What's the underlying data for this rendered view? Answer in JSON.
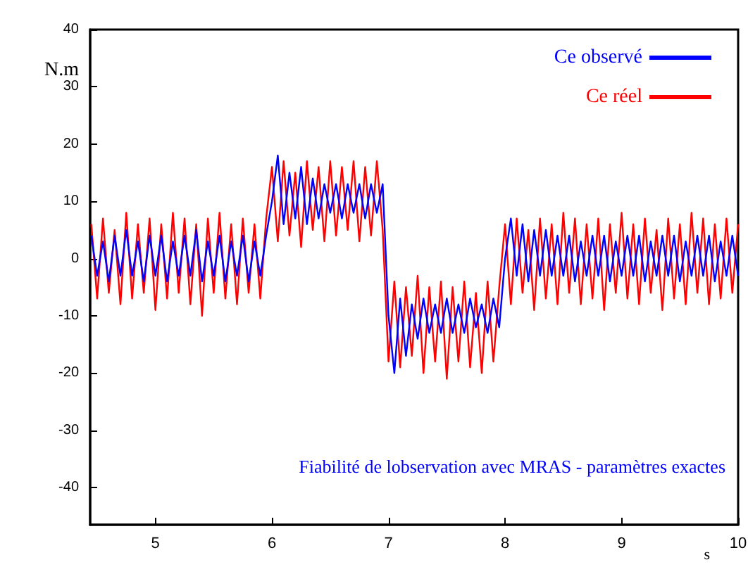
{
  "chart_data": {
    "type": "line",
    "xlabel": "s",
    "ylabel": "N.m",
    "annotations": [
      "Fiabilité de lobservation avec MRAS - paramètres exactes"
    ],
    "x": [
      4.45,
      4.5,
      4.55,
      4.6,
      4.65,
      4.7,
      4.75,
      4.8,
      4.85,
      4.9,
      4.95,
      5,
      5.05,
      5.1,
      5.15,
      5.2,
      5.25,
      5.3,
      5.35,
      5.4,
      5.45,
      5.5,
      5.55,
      5.6,
      5.65,
      5.7,
      5.75,
      5.8,
      5.85,
      5.9,
      5.95,
      6,
      6.05,
      6.1,
      6.15,
      6.2,
      6.25,
      6.3,
      6.35,
      6.4,
      6.45,
      6.5,
      6.55,
      6.6,
      6.65,
      6.7,
      6.75,
      6.8,
      6.85,
      6.9,
      6.95,
      7,
      7.05,
      7.1,
      7.15,
      7.2,
      7.25,
      7.3,
      7.35,
      7.4,
      7.45,
      7.5,
      7.55,
      7.6,
      7.65,
      7.7,
      7.75,
      7.8,
      7.85,
      7.9,
      7.95,
      8,
      8.05,
      8.1,
      8.15,
      8.2,
      8.25,
      8.3,
      8.35,
      8.4,
      8.45,
      8.5,
      8.55,
      8.6,
      8.65,
      8.7,
      8.75,
      8.8,
      8.85,
      8.9,
      8.95,
      9,
      9.05,
      9.1,
      9.15,
      9.2,
      9.25,
      9.3,
      9.35,
      9.4,
      9.45,
      9.5,
      9.55,
      9.6,
      9.65,
      9.7,
      9.75,
      9.8,
      9.85,
      9.9,
      9.95,
      10
    ],
    "series": [
      {
        "name": "Ce réel",
        "color": "#ff0000",
        "values": [
          6,
          -7,
          7,
          -6,
          5,
          -8,
          8,
          -7,
          6,
          -6,
          7,
          -9,
          6,
          -7,
          8,
          -6,
          7,
          -8,
          6,
          -10,
          7,
          -6,
          8,
          -7,
          6,
          -8,
          7,
          -6,
          6,
          -7,
          7,
          16,
          3,
          17,
          4,
          15,
          2,
          17,
          5,
          16,
          3,
          17,
          4,
          16,
          5,
          17,
          3,
          16,
          4,
          17,
          5,
          -18,
          -4,
          -19,
          -5,
          -17,
          -3,
          -20,
          -5,
          -18,
          -4,
          -21,
          -5,
          -18,
          -4,
          -19,
          -6,
          -20,
          -4,
          -18,
          -5,
          6,
          -8,
          7,
          -6,
          5,
          -9,
          7,
          -7,
          6,
          -8,
          8,
          -6,
          7,
          -8,
          6,
          -7,
          7,
          -9,
          6,
          -6,
          8,
          -7,
          6,
          -8,
          7,
          -6,
          5,
          -9,
          7,
          -7,
          6,
          -8,
          8,
          -6,
          7,
          -8,
          6,
          -7,
          7,
          -6,
          6
        ]
      },
      {
        "name": "Ce observé",
        "color": "#0000ff",
        "values": [
          4,
          -3,
          3,
          -4,
          4,
          -3,
          5,
          -3,
          3,
          -4,
          4,
          -3,
          4,
          -4,
          3,
          -3,
          4,
          -3,
          5,
          -4,
          3,
          -3,
          4,
          -4,
          3,
          -3,
          4,
          -4,
          3,
          -3,
          4,
          10,
          18,
          6,
          15,
          7,
          16,
          6,
          14,
          7,
          13,
          8,
          13,
          7,
          13,
          8,
          13,
          7,
          13,
          8,
          13,
          -10,
          -20,
          -7,
          -17,
          -8,
          -14,
          -7,
          -13,
          -8,
          -13,
          -7,
          -13,
          -8,
          -13,
          -7,
          -12,
          -8,
          -13,
          -7,
          -12,
          0,
          7,
          -3,
          6,
          -4,
          5,
          -3,
          5,
          -3,
          4,
          -3,
          4,
          -4,
          3,
          -3,
          4,
          -3,
          4,
          -4,
          3,
          -3,
          4,
          -3,
          4,
          -4,
          3,
          -3,
          4,
          -3,
          4,
          -4,
          3,
          -3,
          4,
          -3,
          4,
          -4,
          3,
          -3,
          4,
          -3
        ]
      }
    ],
    "legend": "top right",
    "grid": false,
    "xlim": [
      4.44,
      10
    ],
    "xticks": [
      5,
      6,
      7,
      8,
      9,
      10
    ],
    "ylim": [
      -46.5,
      40
    ],
    "yticks": [
      -40,
      -30,
      -20,
      -10,
      0,
      10,
      20,
      30,
      40
    ]
  }
}
